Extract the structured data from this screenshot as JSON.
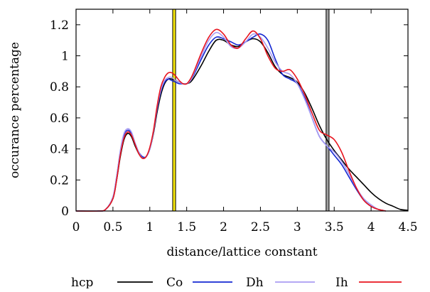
{
  "chart_data": {
    "type": "line",
    "title": "",
    "xlabel": "distance/lattice constant",
    "ylabel": "occurance percentage",
    "xlim": [
      0,
      4.5
    ],
    "ylim": [
      0,
      1.3
    ],
    "x_ticks": [
      "0",
      "0.5",
      "1",
      "1.5",
      "2",
      "2.5",
      "3",
      "3.5",
      "4",
      "4.5"
    ],
    "y_ticks": [
      "0",
      "0.2",
      "0.4",
      "0.6",
      "0.8",
      "1",
      "1.2"
    ],
    "legend_position": "bottom",
    "vertical_bands": [
      {
        "x": 1.33,
        "width": 0.04,
        "color": "#f5e50a"
      },
      {
        "x": 3.41,
        "width": 0.04,
        "color": "#a0a0a0"
      }
    ],
    "series": [
      {
        "name": "hcp",
        "color": "#000000",
        "x": [
          0.0,
          0.3,
          0.4,
          0.5,
          0.55,
          0.6,
          0.65,
          0.7,
          0.75,
          0.8,
          0.85,
          0.9,
          0.95,
          1.0,
          1.05,
          1.1,
          1.15,
          1.2,
          1.25,
          1.3,
          1.35,
          1.4,
          1.45,
          1.5,
          1.55,
          1.6,
          1.7,
          1.8,
          1.9,
          2.0,
          2.1,
          2.2,
          2.3,
          2.4,
          2.5,
          2.6,
          2.7,
          2.8,
          2.9,
          3.0,
          3.1,
          3.2,
          3.3,
          3.4,
          3.5,
          3.6,
          3.7,
          3.8,
          3.9,
          4.0,
          4.1,
          4.2,
          4.3,
          4.4,
          4.5
        ],
        "y": [
          0.0,
          0.0,
          0.01,
          0.08,
          0.2,
          0.35,
          0.46,
          0.5,
          0.48,
          0.42,
          0.37,
          0.34,
          0.35,
          0.4,
          0.5,
          0.64,
          0.75,
          0.82,
          0.85,
          0.85,
          0.84,
          0.83,
          0.82,
          0.82,
          0.83,
          0.86,
          0.94,
          1.03,
          1.1,
          1.1,
          1.07,
          1.06,
          1.09,
          1.11,
          1.09,
          1.02,
          0.93,
          0.88,
          0.86,
          0.83,
          0.76,
          0.66,
          0.55,
          0.46,
          0.39,
          0.33,
          0.27,
          0.22,
          0.17,
          0.12,
          0.08,
          0.05,
          0.03,
          0.01,
          0.005
        ]
      },
      {
        "name": "Co",
        "color": "#1428d2",
        "x": [
          0.0,
          0.3,
          0.4,
          0.5,
          0.55,
          0.6,
          0.65,
          0.7,
          0.75,
          0.8,
          0.85,
          0.9,
          0.95,
          1.0,
          1.05,
          1.1,
          1.15,
          1.2,
          1.25,
          1.3,
          1.35,
          1.4,
          1.45,
          1.5,
          1.55,
          1.6,
          1.7,
          1.8,
          1.9,
          2.0,
          2.1,
          2.2,
          2.3,
          2.4,
          2.5,
          2.6,
          2.7,
          2.8,
          2.9,
          3.0,
          3.1,
          3.2,
          3.3,
          3.4,
          3.5,
          3.6,
          3.7,
          3.8,
          3.9,
          4.0,
          4.1,
          4.2
        ],
        "y": [
          0.0,
          0.0,
          0.01,
          0.09,
          0.22,
          0.38,
          0.49,
          0.52,
          0.5,
          0.43,
          0.38,
          0.35,
          0.35,
          0.4,
          0.51,
          0.66,
          0.77,
          0.83,
          0.85,
          0.84,
          0.83,
          0.82,
          0.82,
          0.82,
          0.84,
          0.88,
          0.98,
          1.07,
          1.12,
          1.11,
          1.09,
          1.07,
          1.09,
          1.12,
          1.14,
          1.1,
          0.98,
          0.88,
          0.85,
          0.82,
          0.73,
          0.6,
          0.48,
          0.42,
          0.36,
          0.3,
          0.22,
          0.14,
          0.07,
          0.03,
          0.01,
          0.0
        ]
      },
      {
        "name": "Dh",
        "color": "#a99cf2",
        "x": [
          0.0,
          0.3,
          0.4,
          0.5,
          0.55,
          0.6,
          0.65,
          0.7,
          0.75,
          0.8,
          0.85,
          0.9,
          0.95,
          1.0,
          1.05,
          1.1,
          1.15,
          1.2,
          1.25,
          1.3,
          1.35,
          1.4,
          1.45,
          1.5,
          1.55,
          1.6,
          1.7,
          1.8,
          1.9,
          2.0,
          2.1,
          2.2,
          2.3,
          2.4,
          2.5,
          2.6,
          2.7,
          2.8,
          2.9,
          3.0,
          3.1,
          3.2,
          3.3,
          3.4,
          3.5,
          3.6,
          3.7,
          3.8,
          3.9,
          4.0,
          4.1,
          4.2
        ],
        "y": [
          0.0,
          0.0,
          0.01,
          0.09,
          0.22,
          0.39,
          0.5,
          0.53,
          0.51,
          0.44,
          0.38,
          0.34,
          0.35,
          0.4,
          0.51,
          0.67,
          0.78,
          0.84,
          0.86,
          0.86,
          0.84,
          0.83,
          0.82,
          0.82,
          0.84,
          0.89,
          1.0,
          1.1,
          1.15,
          1.12,
          1.06,
          1.05,
          1.09,
          1.14,
          1.12,
          1.05,
          0.96,
          0.9,
          0.88,
          0.82,
          0.72,
          0.6,
          0.48,
          0.42,
          0.38,
          0.32,
          0.24,
          0.15,
          0.08,
          0.04,
          0.01,
          0.0
        ]
      },
      {
        "name": "Ih",
        "color": "#e8141e",
        "x": [
          0.0,
          0.3,
          0.4,
          0.5,
          0.55,
          0.6,
          0.65,
          0.7,
          0.75,
          0.8,
          0.85,
          0.9,
          0.95,
          1.0,
          1.05,
          1.1,
          1.15,
          1.2,
          1.25,
          1.3,
          1.35,
          1.4,
          1.45,
          1.5,
          1.55,
          1.6,
          1.7,
          1.8,
          1.9,
          2.0,
          2.1,
          2.2,
          2.3,
          2.4,
          2.5,
          2.6,
          2.7,
          2.8,
          2.9,
          3.0,
          3.1,
          3.2,
          3.3,
          3.4,
          3.5,
          3.6,
          3.7,
          3.8,
          3.9,
          4.0,
          4.1,
          4.2
        ],
        "y": [
          0.0,
          0.0,
          0.01,
          0.08,
          0.2,
          0.36,
          0.47,
          0.51,
          0.49,
          0.43,
          0.37,
          0.34,
          0.35,
          0.41,
          0.52,
          0.68,
          0.8,
          0.86,
          0.89,
          0.89,
          0.87,
          0.84,
          0.82,
          0.82,
          0.85,
          0.9,
          1.02,
          1.12,
          1.17,
          1.14,
          1.07,
          1.05,
          1.11,
          1.16,
          1.11,
          1.0,
          0.92,
          0.9,
          0.91,
          0.85,
          0.75,
          0.63,
          0.52,
          0.49,
          0.46,
          0.38,
          0.26,
          0.15,
          0.07,
          0.03,
          0.01,
          0.0
        ]
      }
    ]
  }
}
